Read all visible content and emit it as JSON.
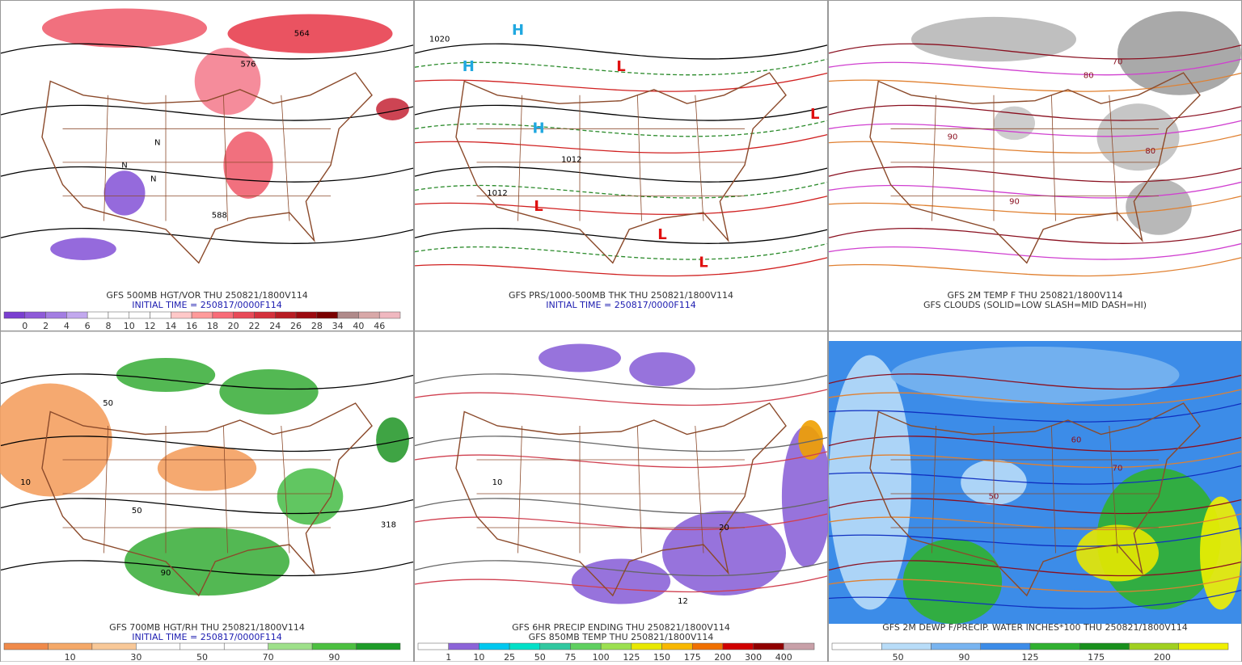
{
  "panels": [
    {
      "captions": [
        "GFS 500MB HGT/VOR THU 250821/1800V114",
        "INITIAL TIME = 250817/0000F114"
      ],
      "caption_colors": [
        "#333333",
        "#1c1cb0"
      ],
      "map_labels": [
        "564",
        "576",
        "588",
        "N",
        "N",
        "N"
      ],
      "colorbar": {
        "labels": [
          0,
          2,
          4,
          6,
          8,
          10,
          12,
          14,
          16,
          18,
          20,
          22,
          24,
          26,
          28,
          34,
          40,
          46
        ],
        "colors": [
          "#7a3fd0",
          "#8e5ad8",
          "#a37de2",
          "#c2a8ee",
          "#ffffff",
          "#ffffff",
          "#ffffff",
          "#ffffff",
          "#ffc8c8",
          "#ff9a9a",
          "#f86c78",
          "#e84a58",
          "#d4303c",
          "#b81c24",
          "#9c0a10",
          "#7a0000",
          "#b08a8a",
          "#d8a8a8",
          "#f0b8c0"
        ]
      }
    },
    {
      "captions": [
        "GFS PRS/1000-500MB THK THU 250821/1800V114",
        "INITIAL TIME = 250817/0000F114"
      ],
      "caption_colors": [
        "#333333",
        "#1c1cb0"
      ],
      "map_labels": [
        "H",
        "H",
        "H",
        "L",
        "L",
        "L",
        "L",
        "L",
        "1020",
        "1012",
        "1012"
      ]
    },
    {
      "captions": [
        "GFS 2M TEMP F THU 250821/1800V114",
        "GFS CLOUDS (SOLID=LOW SLASH=MID DASH=HI)"
      ],
      "caption_colors": [
        "#333333",
        "#333333"
      ],
      "map_labels": [
        "80",
        "90",
        "80",
        "70",
        "90"
      ]
    },
    {
      "captions": [
        "GFS 700MB HGT/RH THU 250821/1800V114",
        "INITIAL TIME = 250817/0000F114"
      ],
      "caption_colors": [
        "#333333",
        "#1c1cb0"
      ],
      "map_labels": [
        "50",
        "10",
        "90",
        "318",
        "50"
      ],
      "colorbar": {
        "labels": [
          10,
          30,
          50,
          70,
          90
        ],
        "colors": [
          "#f08a4a",
          "#f4a868",
          "#f8c898",
          "#ffffff",
          "#ffffff",
          "#ffffff",
          "#9ee08a",
          "#4cc040",
          "#1e9c28"
        ]
      }
    },
    {
      "captions": [
        "GFS 6HR PRECIP ENDING THU 250821/1800V114",
        "GFS 850MB TEMP THU 250821/1800V114"
      ],
      "caption_colors": [
        "#333333",
        "#333333"
      ],
      "map_labels": [
        "20",
        "10",
        "12"
      ],
      "colorbar": {
        "labels": [
          1,
          10,
          25,
          50,
          75,
          100,
          125,
          150,
          175,
          200,
          300,
          400
        ],
        "colors": [
          "#ffffff",
          "#8c64d8",
          "#00c8f0",
          "#00e0c8",
          "#30c8a0",
          "#60d060",
          "#9ce050",
          "#e8e800",
          "#f8b800",
          "#f07000",
          "#d00000",
          "#900000",
          "#c8a0a8"
        ]
      }
    },
    {
      "captions": [
        "GFS 2M DEWP F/PRECIP. WATER INCHES*100 THU 250821/1800V114"
      ],
      "caption_colors": [
        "#333333"
      ],
      "map_labels": [
        "50",
        "60",
        "70"
      ],
      "colorbar": {
        "labels": [
          50,
          90,
          125,
          175,
          200
        ],
        "colors": [
          "#ffffff",
          "#b8dcf8",
          "#78b4f0",
          "#3c8ce8",
          "#30b030",
          "#18901c",
          "#a0d020",
          "#f0f000"
        ]
      }
    }
  ]
}
